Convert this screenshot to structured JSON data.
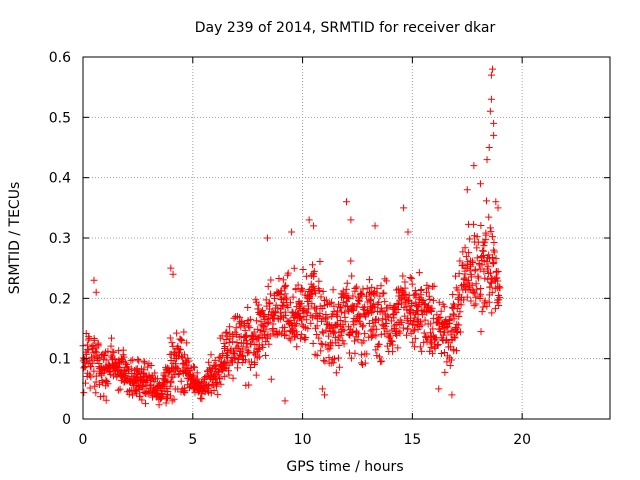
{
  "chart_data": {
    "type": "scatter",
    "title": "Day 239 of 2014, SRMTID for receiver dkar",
    "xlabel": "GPS time / hours",
    "ylabel": "SRMTID / TECUs",
    "xlim": [
      0,
      24
    ],
    "ylim": [
      0,
      0.6
    ],
    "xticks": [
      0,
      5,
      10,
      15,
      20
    ],
    "yticks": [
      0,
      0.1,
      0.2,
      0.3,
      0.4,
      0.5,
      0.6
    ],
    "xtick_labels": [
      "0",
      "5",
      "10",
      "15",
      "20"
    ],
    "ytick_labels": [
      "0",
      "0.1",
      "0.2",
      "0.3",
      "0.4",
      "0.5",
      "0.6"
    ],
    "grid": true,
    "marker": "+",
    "color": "#ff0000",
    "series": [
      {
        "name": "SRMTID",
        "envelope": [
          {
            "x": 0.0,
            "mean": 0.09,
            "spread": 0.04
          },
          {
            "x": 0.5,
            "mean": 0.1,
            "spread": 0.06
          },
          {
            "x": 1.0,
            "mean": 0.08,
            "spread": 0.04
          },
          {
            "x": 1.5,
            "mean": 0.09,
            "spread": 0.04
          },
          {
            "x": 2.0,
            "mean": 0.07,
            "spread": 0.03
          },
          {
            "x": 2.5,
            "mean": 0.07,
            "spread": 0.03
          },
          {
            "x": 3.0,
            "mean": 0.06,
            "spread": 0.03
          },
          {
            "x": 3.5,
            "mean": 0.05,
            "spread": 0.03
          },
          {
            "x": 4.0,
            "mean": 0.08,
            "spread": 0.05
          },
          {
            "x": 4.5,
            "mean": 0.1,
            "spread": 0.05
          },
          {
            "x": 5.0,
            "mean": 0.06,
            "spread": 0.03
          },
          {
            "x": 5.5,
            "mean": 0.05,
            "spread": 0.02
          },
          {
            "x": 6.0,
            "mean": 0.08,
            "spread": 0.04
          },
          {
            "x": 6.5,
            "mean": 0.11,
            "spread": 0.05
          },
          {
            "x": 7.0,
            "mean": 0.13,
            "spread": 0.06
          },
          {
            "x": 7.5,
            "mean": 0.12,
            "spread": 0.06
          },
          {
            "x": 8.0,
            "mean": 0.14,
            "spread": 0.07
          },
          {
            "x": 8.5,
            "mean": 0.15,
            "spread": 0.07
          },
          {
            "x": 9.0,
            "mean": 0.18,
            "spread": 0.06
          },
          {
            "x": 9.5,
            "mean": 0.18,
            "spread": 0.06
          },
          {
            "x": 10.0,
            "mean": 0.17,
            "spread": 0.07
          },
          {
            "x": 10.5,
            "mean": 0.2,
            "spread": 0.08
          },
          {
            "x": 11.0,
            "mean": 0.16,
            "spread": 0.07
          },
          {
            "x": 11.5,
            "mean": 0.14,
            "spread": 0.07
          },
          {
            "x": 12.0,
            "mean": 0.18,
            "spread": 0.08
          },
          {
            "x": 12.5,
            "mean": 0.17,
            "spread": 0.07
          },
          {
            "x": 13.0,
            "mean": 0.18,
            "spread": 0.07
          },
          {
            "x": 13.5,
            "mean": 0.16,
            "spread": 0.07
          },
          {
            "x": 14.0,
            "mean": 0.16,
            "spread": 0.06
          },
          {
            "x": 14.5,
            "mean": 0.18,
            "spread": 0.06
          },
          {
            "x": 15.0,
            "mean": 0.19,
            "spread": 0.06
          },
          {
            "x": 15.5,
            "mean": 0.18,
            "spread": 0.06
          },
          {
            "x": 16.0,
            "mean": 0.15,
            "spread": 0.06
          },
          {
            "x": 16.5,
            "mean": 0.14,
            "spread": 0.06
          },
          {
            "x": 17.0,
            "mean": 0.17,
            "spread": 0.07
          },
          {
            "x": 17.5,
            "mean": 0.25,
            "spread": 0.08
          },
          {
            "x": 18.0,
            "mean": 0.24,
            "spread": 0.08
          },
          {
            "x": 18.5,
            "mean": 0.27,
            "spread": 0.1
          },
          {
            "x": 19.0,
            "mean": 0.21,
            "spread": 0.03
          }
        ],
        "highlights": [
          {
            "x": 0.5,
            "y": 0.23
          },
          {
            "x": 0.6,
            "y": 0.21
          },
          {
            "x": 4.0,
            "y": 0.25
          },
          {
            "x": 4.1,
            "y": 0.24
          },
          {
            "x": 8.4,
            "y": 0.3
          },
          {
            "x": 9.5,
            "y": 0.31
          },
          {
            "x": 10.3,
            "y": 0.33
          },
          {
            "x": 10.5,
            "y": 0.32
          },
          {
            "x": 12.0,
            "y": 0.36
          },
          {
            "x": 12.2,
            "y": 0.33
          },
          {
            "x": 13.3,
            "y": 0.32
          },
          {
            "x": 14.6,
            "y": 0.35
          },
          {
            "x": 14.8,
            "y": 0.31
          },
          {
            "x": 17.5,
            "y": 0.38
          },
          {
            "x": 17.8,
            "y": 0.42
          },
          {
            "x": 18.1,
            "y": 0.39
          },
          {
            "x": 18.4,
            "y": 0.43
          },
          {
            "x": 18.5,
            "y": 0.45
          },
          {
            "x": 18.55,
            "y": 0.51
          },
          {
            "x": 18.6,
            "y": 0.53
          },
          {
            "x": 18.6,
            "y": 0.57
          },
          {
            "x": 18.65,
            "y": 0.58
          },
          {
            "x": 18.7,
            "y": 0.49
          },
          {
            "x": 18.7,
            "y": 0.47
          },
          {
            "x": 18.8,
            "y": 0.36
          },
          {
            "x": 18.9,
            "y": 0.35
          },
          {
            "x": 18.7,
            "y": 0.28
          },
          {
            "x": 11.0,
            "y": 0.04
          },
          {
            "x": 10.9,
            "y": 0.05
          },
          {
            "x": 9.2,
            "y": 0.03
          },
          {
            "x": 16.2,
            "y": 0.05
          },
          {
            "x": 16.8,
            "y": 0.04
          }
        ]
      }
    ]
  }
}
